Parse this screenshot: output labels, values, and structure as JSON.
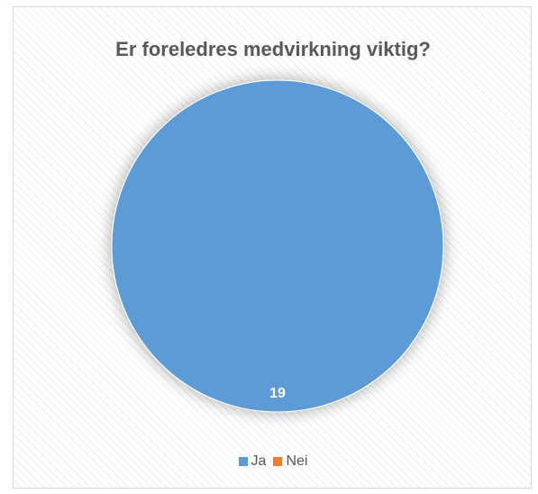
{
  "chart_data": {
    "type": "pie",
    "title": "Er foreledres medvirkning viktig?",
    "categories": [
      "Ja",
      "Nei"
    ],
    "values": [
      19,
      0
    ],
    "colors": [
      "#5B9BD5",
      "#ED7D31"
    ],
    "data_labels": [
      "19",
      ""
    ],
    "legend_position": "bottom",
    "legend": [
      {
        "label": "Ja",
        "color": "#5B9BD5"
      },
      {
        "label": "Nei",
        "color": "#ED7D31"
      }
    ]
  }
}
